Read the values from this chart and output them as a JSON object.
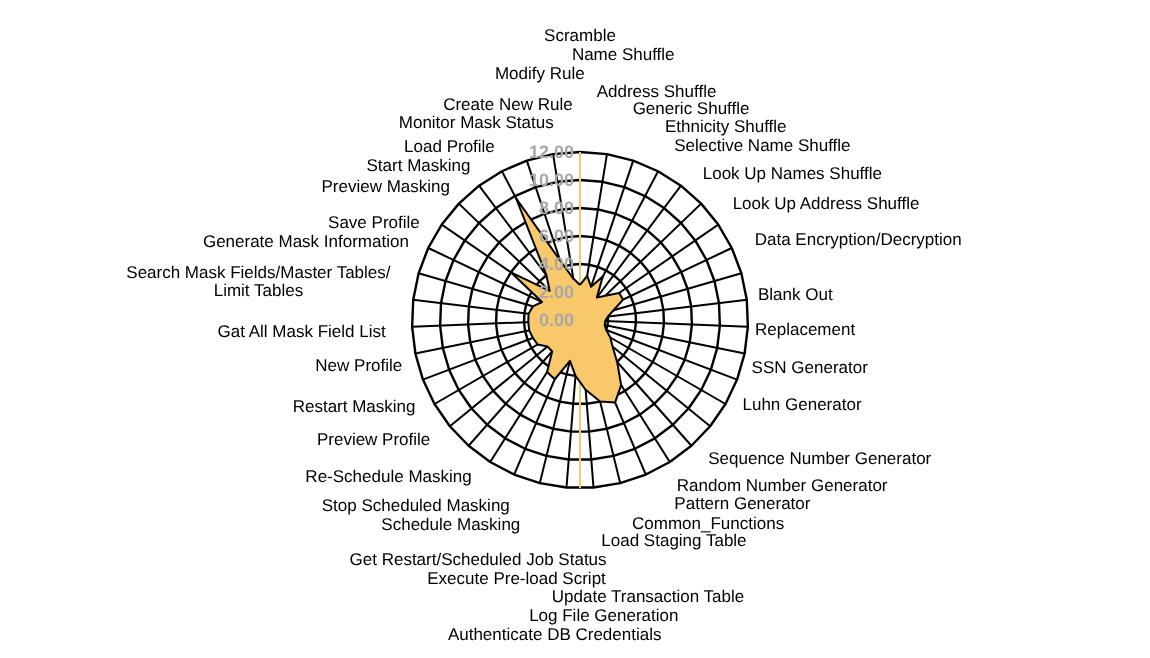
{
  "chart_data": {
    "type": "radar",
    "categories": [
      "Scramble",
      "Name Shuffle",
      "Address Shuffle",
      "Generic Shuffle",
      "Ethnicity Shuffle",
      "Selective Name Shuffle",
      "Look Up Names Shuffle",
      "Look Up Address Shuffle",
      "Data Encryption/Decryption",
      "Blank Out",
      "Replacement",
      "SSN Generator",
      "Luhn Generator",
      "Sequence Number Generator",
      "Random Number Generator",
      "Pattern Generator",
      "Common_Functions",
      "Load Staging Table",
      "Update Transaction Table",
      "Log File Generation",
      "Authenticate DB Credentials",
      "Execute Pre-load Script",
      "Get Restart/Scheduled Job Status",
      "Schedule Masking",
      "Stop Scheduled Masking",
      "Re-Schedule Masking",
      "Preview Profile",
      "Restart Masking",
      "New Profile",
      "Gat All Mask Field List",
      "Search Mask Fields/Master Tables/ Limit Tables",
      "Generate Mask Information",
      "Save Profile",
      "Preview Masking",
      "Start Masking",
      "Load Profile",
      "Monitor Mask Status",
      "Create New Rule",
      "Modify Rule"
    ],
    "series": [
      {
        "color": "#f9c86b",
        "values": [
          2.5,
          3.2,
          2.5,
          3.5,
          2.0,
          2.5,
          3.4,
          3.4,
          2.5,
          2.0,
          1.8,
          1.8,
          2.0,
          2.5,
          3.0,
          4.0,
          5.5,
          6.4,
          6.0,
          5.0,
          4.0,
          3.0,
          4.6,
          4.4,
          3.0,
          3.0,
          3.5,
          3.6,
          3.7,
          3.7,
          3.7,
          3.5,
          3.0,
          6.0,
          3.0,
          4.0,
          9.8,
          4.5,
          3.0
        ]
      }
    ],
    "ylim": [
      0,
      12
    ],
    "yticks": [
      {
        "value": 0,
        "label": "0.00"
      },
      {
        "value": 2,
        "label": "2.00"
      },
      {
        "value": 4,
        "label": "4.00"
      },
      {
        "value": 6,
        "label": "6.00"
      },
      {
        "value": 8,
        "label": "8.00"
      },
      {
        "value": 10,
        "label": "10.00"
      },
      {
        "value": 12,
        "label": "12.00"
      }
    ],
    "grid": true
  }
}
